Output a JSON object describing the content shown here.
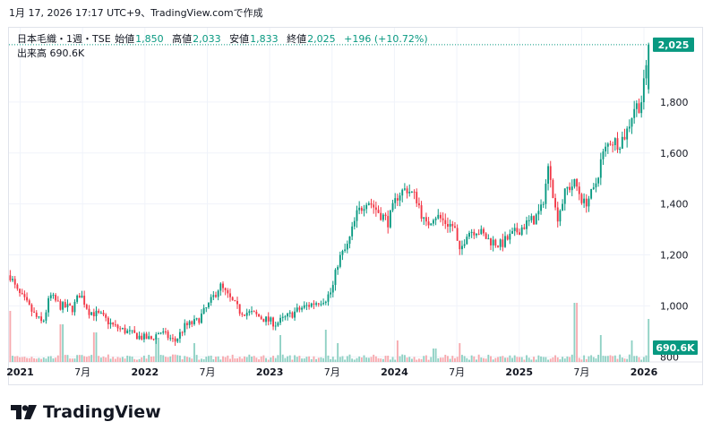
{
  "header": {
    "caption": "1月 17, 2026 17:17 UTC+9、TradingView.comで作成"
  },
  "legend": {
    "symbol": "日本毛織・1週・TSE",
    "open_label": "始値",
    "open": "1,850",
    "high_label": "高値",
    "high": "2,033",
    "low_label": "安値",
    "low": "1,833",
    "close_label": "終値",
    "close": "2,025",
    "change": "+196 (+10.72%)",
    "volume_label": "出来高",
    "volume": "690.6K"
  },
  "brand": {
    "name": "TradingView",
    "logo_icon": "tradingview-logo-icon"
  },
  "colors": {
    "up": "#089981",
    "down": "#f23645",
    "grid": "#f0f3fa",
    "axis_text": "#131722"
  },
  "chart_data": {
    "type": "candlestick",
    "title": "日本毛織・1週・TSE",
    "ylim": [
      780,
      2095
    ],
    "y_ticks": [
      800,
      1000,
      1200,
      1400,
      1600,
      1800
    ],
    "y_tick_labels": [
      "800",
      "1,000",
      "1,200",
      "1,400",
      "1,600",
      "1,800"
    ],
    "x_ticks": [
      {
        "t": 2021.0,
        "label": "2021"
      },
      {
        "t": 2021.5,
        "label": "7月"
      },
      {
        "t": 2022.0,
        "label": "2022"
      },
      {
        "t": 2022.5,
        "label": "7月"
      },
      {
        "t": 2023.0,
        "label": "2023"
      },
      {
        "t": 2023.5,
        "label": "7月"
      },
      {
        "t": 2024.0,
        "label": "2024"
      },
      {
        "t": 2024.5,
        "label": "7月"
      },
      {
        "t": 2025.0,
        "label": "2025"
      },
      {
        "t": 2025.5,
        "label": "7月"
      },
      {
        "t": 2026.0,
        "label": "2026"
      }
    ],
    "xlim": [
      2020.91,
      2026.05
    ],
    "last_price": 2025,
    "last_price_label": "2,025",
    "last_volume_label": "690.6K",
    "price_path": [
      [
        2020.92,
        1120
      ],
      [
        2020.97,
        1060
      ],
      [
        2021.05,
        1010
      ],
      [
        2021.12,
        960
      ],
      [
        2021.18,
        930
      ],
      [
        2021.24,
        1040
      ],
      [
        2021.32,
        1000
      ],
      [
        2021.42,
        990
      ],
      [
        2021.48,
        1050
      ],
      [
        2021.55,
        980
      ],
      [
        2021.65,
        960
      ],
      [
        2021.75,
        920
      ],
      [
        2021.85,
        900
      ],
      [
        2021.95,
        880
      ],
      [
        2022.05,
        870
      ],
      [
        2022.12,
        900
      ],
      [
        2022.18,
        880
      ],
      [
        2022.24,
        860
      ],
      [
        2022.32,
        920
      ],
      [
        2022.42,
        940
      ],
      [
        2022.52,
        1010
      ],
      [
        2022.6,
        1080
      ],
      [
        2022.66,
        1040
      ],
      [
        2022.76,
        980
      ],
      [
        2022.86,
        970
      ],
      [
        2022.95,
        950
      ],
      [
        2023.05,
        930
      ],
      [
        2023.15,
        960
      ],
      [
        2023.25,
        990
      ],
      [
        2023.35,
        1010
      ],
      [
        2023.45,
        1030
      ],
      [
        2023.5,
        1060
      ],
      [
        2023.55,
        1180
      ],
      [
        2023.62,
        1230
      ],
      [
        2023.7,
        1360
      ],
      [
        2023.78,
        1420
      ],
      [
        2023.85,
        1380
      ],
      [
        2023.95,
        1330
      ],
      [
        2024.03,
        1440
      ],
      [
        2024.1,
        1460
      ],
      [
        2024.18,
        1420
      ],
      [
        2024.25,
        1310
      ],
      [
        2024.32,
        1360
      ],
      [
        2024.4,
        1330
      ],
      [
        2024.48,
        1310
      ],
      [
        2024.52,
        1200
      ],
      [
        2024.58,
        1290
      ],
      [
        2024.66,
        1300
      ],
      [
        2024.75,
        1260
      ],
      [
        2024.85,
        1240
      ],
      [
        2024.95,
        1280
      ],
      [
        2025.05,
        1320
      ],
      [
        2025.12,
        1340
      ],
      [
        2025.18,
        1380
      ],
      [
        2025.24,
        1560
      ],
      [
        2025.3,
        1340
      ],
      [
        2025.38,
        1460
      ],
      [
        2025.45,
        1480
      ],
      [
        2025.52,
        1400
      ],
      [
        2025.6,
        1450
      ],
      [
        2025.66,
        1580
      ],
      [
        2025.73,
        1650
      ],
      [
        2025.8,
        1640
      ],
      [
        2025.86,
        1680
      ],
      [
        2025.92,
        1780
      ],
      [
        2025.97,
        1790
      ],
      [
        2025.99,
        1829
      ],
      [
        2026.04,
        2025
      ]
    ],
    "notable_volume_spikes": [
      [
        2020.92,
        95
      ],
      [
        2021.33,
        70
      ],
      [
        2021.6,
        55
      ],
      [
        2022.1,
        45
      ],
      [
        2022.4,
        35
      ],
      [
        2023.08,
        50
      ],
      [
        2023.45,
        60
      ],
      [
        2023.55,
        35
      ],
      [
        2024.02,
        40
      ],
      [
        2024.32,
        25
      ],
      [
        2024.52,
        35
      ],
      [
        2025.45,
        110
      ],
      [
        2025.66,
        50
      ],
      [
        2025.9,
        40
      ],
      [
        2026.04,
        80
      ]
    ]
  }
}
